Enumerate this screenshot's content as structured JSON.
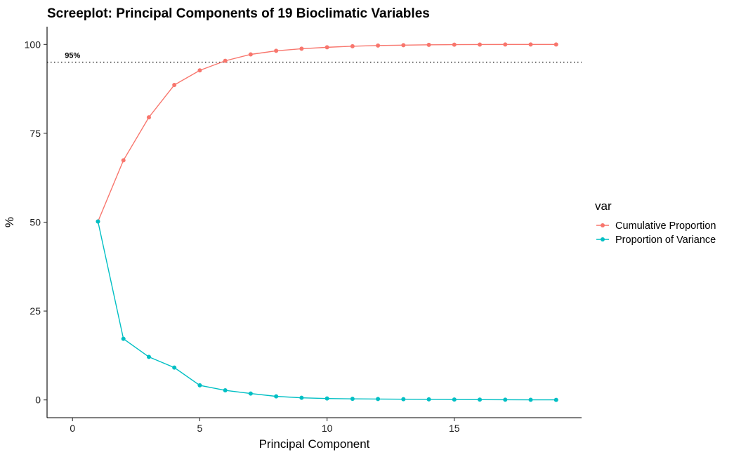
{
  "chart_data": {
    "type": "line",
    "title": "Screeplot: Principal Components of 19 Bioclimatic Variables",
    "xlabel": "Principal Component",
    "ylabel": "%",
    "xlim": [
      -1,
      20
    ],
    "ylim": [
      -5,
      105
    ],
    "x_ticks": [
      0,
      5,
      10,
      15
    ],
    "y_ticks": [
      0,
      25,
      50,
      75,
      100
    ],
    "grid": false,
    "legend": {
      "title": "var",
      "position": "right"
    },
    "reference_line": {
      "y": 95,
      "label": "95%",
      "style": "dotted"
    },
    "x": [
      1,
      2,
      3,
      4,
      5,
      6,
      7,
      8,
      9,
      10,
      11,
      12,
      13,
      14,
      15,
      16,
      17,
      18,
      19
    ],
    "series": [
      {
        "name": "Cumulative Proportion",
        "color": "#F8766D",
        "values": [
          50.2,
          67.4,
          79.5,
          88.6,
          92.7,
          95.4,
          97.2,
          98.2,
          98.8,
          99.2,
          99.5,
          99.7,
          99.8,
          99.9,
          99.95,
          99.97,
          99.99,
          100,
          100
        ]
      },
      {
        "name": "Proportion of Variance",
        "color": "#00BFC4",
        "values": [
          50.2,
          17.2,
          12.1,
          9.1,
          4.1,
          2.7,
          1.8,
          1.0,
          0.6,
          0.4,
          0.3,
          0.25,
          0.2,
          0.15,
          0.1,
          0.08,
          0.05,
          0.03,
          0.02
        ]
      }
    ]
  }
}
